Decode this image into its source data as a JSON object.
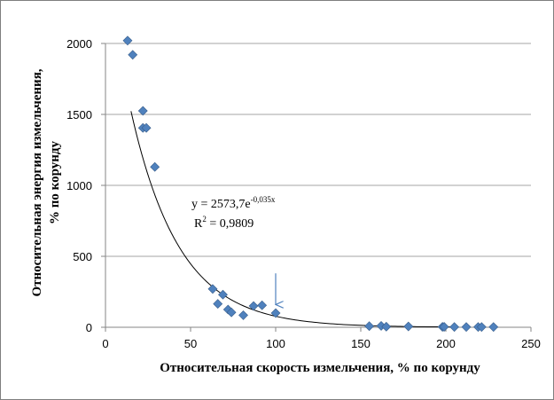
{
  "chart_data": {
    "type": "scatter",
    "x_label": "Относительная скорость измельчения, % по корунду",
    "y_label_line1": "Относительная энергия измельчения,",
    "y_label_line2": "% по корунду",
    "xlim": [
      0,
      250
    ],
    "ylim": [
      0,
      2000
    ],
    "x_ticks": [
      "0",
      "50",
      "100",
      "150",
      "200",
      "250"
    ],
    "y_ticks": [
      "0",
      "500",
      "1000",
      "1500",
      "2000"
    ],
    "grid": "horizontal",
    "marker": "diamond",
    "marker_color": "#4f81bd",
    "trendline": {
      "type": "exponential",
      "a": 2573.7,
      "b": -0.035,
      "x_start": 15,
      "x_end": 205,
      "color": "#000000"
    },
    "equation": {
      "base": "y = 2573,7e",
      "exponent": "-0,035x",
      "r2_prefix": "R",
      "r2_sup": "2",
      "r2_value": " = 0,9809"
    },
    "arrow": {
      "x": 100,
      "y_from": 380,
      "y_to": 160,
      "color": "#4f81bd"
    },
    "points": [
      {
        "x": 13,
        "y": 2020
      },
      {
        "x": 16,
        "y": 1920
      },
      {
        "x": 22,
        "y": 1525
      },
      {
        "x": 22,
        "y": 1405
      },
      {
        "x": 24,
        "y": 1405
      },
      {
        "x": 29,
        "y": 1130
      },
      {
        "x": 63,
        "y": 270
      },
      {
        "x": 66,
        "y": 165
      },
      {
        "x": 69,
        "y": 230
      },
      {
        "x": 72,
        "y": 125
      },
      {
        "x": 74,
        "y": 105
      },
      {
        "x": 81,
        "y": 85
      },
      {
        "x": 87,
        "y": 150
      },
      {
        "x": 92,
        "y": 155
      },
      {
        "x": 100,
        "y": 100
      },
      {
        "x": 155,
        "y": 8
      },
      {
        "x": 162,
        "y": 10
      },
      {
        "x": 165,
        "y": 4
      },
      {
        "x": 178,
        "y": 6
      },
      {
        "x": 198,
        "y": 3
      },
      {
        "x": 199,
        "y": 3
      },
      {
        "x": 205,
        "y": 2
      },
      {
        "x": 212,
        "y": 2
      },
      {
        "x": 219,
        "y": 2
      },
      {
        "x": 221,
        "y": 2
      },
      {
        "x": 228,
        "y": 2
      }
    ]
  }
}
